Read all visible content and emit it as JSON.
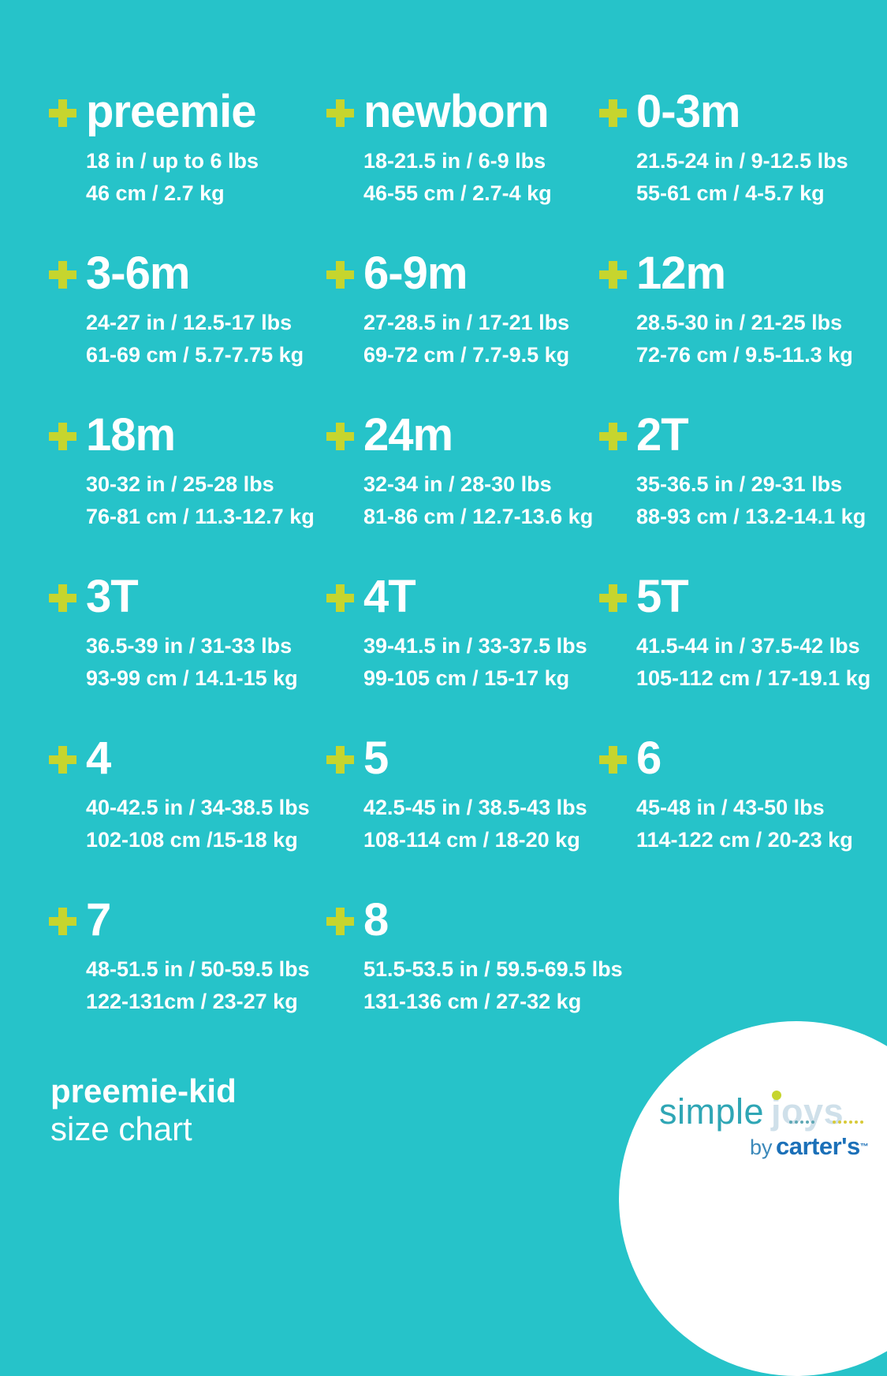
{
  "page": {
    "background_color": "#26c3c9",
    "plus_icon_color": "#c6d52e",
    "text_color": "#ffffff"
  },
  "sizes": [
    {
      "label": "preemie",
      "imperial": "18 in / up to 6 lbs",
      "metric": "46 cm / 2.7 kg"
    },
    {
      "label": "newborn",
      "imperial": "18-21.5 in / 6-9 lbs",
      "metric": "46-55 cm / 2.7-4 kg"
    },
    {
      "label": "0-3m",
      "imperial": "21.5-24 in / 9-12.5 lbs",
      "metric": "55-61 cm / 4-5.7 kg"
    },
    {
      "label": "3-6m",
      "imperial": "24-27 in / 12.5-17 lbs",
      "metric": "61-69 cm / 5.7-7.75 kg"
    },
    {
      "label": "6-9m",
      "imperial": "27-28.5 in / 17-21 lbs",
      "metric": "69-72 cm / 7.7-9.5 kg"
    },
    {
      "label": "12m",
      "imperial": "28.5-30 in / 21-25 lbs",
      "metric": "72-76 cm / 9.5-11.3 kg"
    },
    {
      "label": "18m",
      "imperial": "30-32 in / 25-28 lbs",
      "metric": "76-81 cm / 11.3-12.7 kg"
    },
    {
      "label": "24m",
      "imperial": "32-34 in / 28-30 lbs",
      "metric": "81-86 cm / 12.7-13.6 kg"
    },
    {
      "label": "2T",
      "imperial": "35-36.5 in / 29-31 lbs",
      "metric": "88-93 cm / 13.2-14.1 kg"
    },
    {
      "label": "3T",
      "imperial": "36.5-39 in / 31-33 lbs",
      "metric": "93-99 cm / 14.1-15 kg"
    },
    {
      "label": "4T",
      "imperial": "39-41.5 in / 33-37.5 lbs",
      "metric": "99-105 cm / 15-17 kg"
    },
    {
      "label": "5T",
      "imperial": "41.5-44 in / 37.5-42 lbs",
      "metric": "105-112 cm / 17-19.1 kg"
    },
    {
      "label": "4",
      "imperial": "40-42.5 in / 34-38.5 lbs",
      "metric": "102-108 cm /15-18 kg"
    },
    {
      "label": "5",
      "imperial": "42.5-45 in / 38.5-43 lbs",
      "metric": "108-114 cm / 18-20 kg"
    },
    {
      "label": "6",
      "imperial": "45-48 in / 43-50 lbs",
      "metric": "114-122 cm / 20-23 kg"
    },
    {
      "label": "7",
      "imperial": "48-51.5 in / 50-59.5 lbs",
      "metric": "122-131cm / 23-27 kg"
    },
    {
      "label": "8",
      "imperial": "51.5-53.5 in / 59.5-69.5 lbs",
      "metric": "131-136 cm / 27-32 kg"
    }
  ],
  "footer": {
    "line1": "preemie-kid",
    "line2": "size chart"
  },
  "logo": {
    "simple": "simple",
    "joys": "joys",
    "by": "by",
    "brand": "carter's",
    "tm": "™",
    "simple_color": "#2fa6b5",
    "joys_color": "#cfe0ea",
    "joys_dot_color": "#c6d52e",
    "brand_color": "#1b70b8"
  }
}
